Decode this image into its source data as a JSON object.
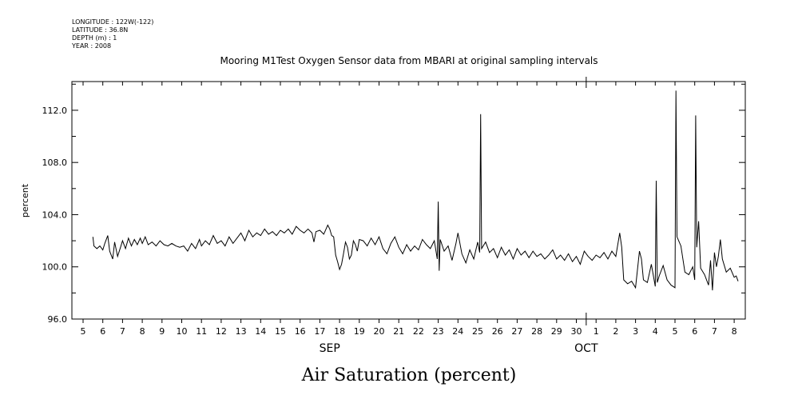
{
  "meta": {
    "longitude": "LONGITUDE : 122W(-122)",
    "latitude": "LATITUDE : 36.8N",
    "depth": "DEPTH (m) : 1",
    "year": "YEAR : 2008"
  },
  "caption": "Air Saturation (percent)",
  "chart_data": {
    "type": "line",
    "title": "Mooring M1Test Oxygen Sensor data from MBARI at original sampling intervals",
    "ylabel": "percent",
    "xlabel": "",
    "ylim": [
      96.0,
      114.2
    ],
    "yticks": [
      "96.0",
      "100.0",
      "104.0",
      "108.0",
      "112.0"
    ],
    "xlim": [
      "2008-09-04T12:00",
      "2008-10-08T12:00"
    ],
    "x_tick_labels": [
      "5",
      "6",
      "7",
      "8",
      "9",
      "10",
      "11",
      "12",
      "13",
      "14",
      "15",
      "16",
      "17",
      "18",
      "19",
      "20",
      "21",
      "22",
      "23",
      "24",
      "25",
      "26",
      "27",
      "28",
      "29",
      "30",
      "1",
      "2",
      "3",
      "4",
      "5",
      "6",
      "7",
      "8"
    ],
    "month_labels": [
      {
        "label": "SEP",
        "day": 17.5
      },
      {
        "label": "OCT",
        "day": 30.5
      }
    ],
    "grid": false,
    "series": [
      {
        "x_unit": "days since 2008-09-04T12:00 (tick N centered at day index)",
        "points": [
          [
            0.5,
            102.3
          ],
          [
            0.55,
            101.6
          ],
          [
            0.7,
            101.4
          ],
          [
            0.85,
            101.6
          ],
          [
            1.0,
            101.3
          ],
          [
            1.1,
            101.8
          ],
          [
            1.25,
            102.4
          ],
          [
            1.35,
            101.2
          ],
          [
            1.5,
            100.6
          ],
          [
            1.6,
            101.9
          ],
          [
            1.75,
            100.8
          ],
          [
            1.9,
            101.5
          ],
          [
            2.0,
            102.0
          ],
          [
            2.15,
            101.4
          ],
          [
            2.3,
            102.2
          ],
          [
            2.45,
            101.6
          ],
          [
            2.6,
            102.1
          ],
          [
            2.75,
            101.7
          ],
          [
            2.9,
            102.2
          ],
          [
            3.0,
            101.8
          ],
          [
            3.15,
            102.3
          ],
          [
            3.3,
            101.7
          ],
          [
            3.5,
            101.9
          ],
          [
            3.7,
            101.6
          ],
          [
            3.9,
            102.0
          ],
          [
            4.1,
            101.7
          ],
          [
            4.3,
            101.6
          ],
          [
            4.5,
            101.8
          ],
          [
            4.7,
            101.6
          ],
          [
            4.9,
            101.5
          ],
          [
            5.1,
            101.6
          ],
          [
            5.3,
            101.2
          ],
          [
            5.5,
            101.8
          ],
          [
            5.7,
            101.4
          ],
          [
            5.9,
            102.1
          ],
          [
            6.0,
            101.6
          ],
          [
            6.2,
            102.0
          ],
          [
            6.4,
            101.7
          ],
          [
            6.6,
            102.4
          ],
          [
            6.8,
            101.8
          ],
          [
            7.0,
            102.0
          ],
          [
            7.2,
            101.6
          ],
          [
            7.4,
            102.3
          ],
          [
            7.6,
            101.8
          ],
          [
            7.8,
            102.2
          ],
          [
            8.0,
            102.6
          ],
          [
            8.2,
            102.0
          ],
          [
            8.4,
            102.8
          ],
          [
            8.6,
            102.3
          ],
          [
            8.8,
            102.6
          ],
          [
            9.0,
            102.4
          ],
          [
            9.2,
            102.9
          ],
          [
            9.4,
            102.5
          ],
          [
            9.6,
            102.7
          ],
          [
            9.8,
            102.4
          ],
          [
            10.0,
            102.8
          ],
          [
            10.2,
            102.6
          ],
          [
            10.4,
            102.9
          ],
          [
            10.6,
            102.5
          ],
          [
            10.8,
            103.1
          ],
          [
            11.0,
            102.8
          ],
          [
            11.2,
            102.6
          ],
          [
            11.4,
            102.9
          ],
          [
            11.6,
            102.6
          ],
          [
            11.7,
            101.9
          ],
          [
            11.8,
            102.7
          ],
          [
            12.0,
            102.8
          ],
          [
            12.2,
            102.5
          ],
          [
            12.4,
            103.2
          ],
          [
            12.5,
            102.9
          ],
          [
            12.6,
            102.4
          ],
          [
            12.7,
            102.3
          ],
          [
            12.8,
            100.9
          ],
          [
            12.9,
            100.4
          ],
          [
            13.0,
            99.8
          ],
          [
            13.1,
            100.2
          ],
          [
            13.2,
            101.0
          ],
          [
            13.3,
            101.9
          ],
          [
            13.4,
            101.5
          ],
          [
            13.5,
            100.6
          ],
          [
            13.6,
            100.9
          ],
          [
            13.7,
            102.0
          ],
          [
            13.8,
            101.7
          ],
          [
            13.9,
            101.2
          ],
          [
            14.0,
            102.1
          ],
          [
            14.2,
            102.0
          ],
          [
            14.4,
            101.6
          ],
          [
            14.6,
            102.2
          ],
          [
            14.8,
            101.7
          ],
          [
            15.0,
            102.3
          ],
          [
            15.2,
            101.4
          ],
          [
            15.4,
            101.0
          ],
          [
            15.6,
            101.8
          ],
          [
            15.8,
            102.3
          ],
          [
            16.0,
            101.5
          ],
          [
            16.2,
            101.0
          ],
          [
            16.4,
            101.7
          ],
          [
            16.6,
            101.2
          ],
          [
            16.8,
            101.6
          ],
          [
            17.0,
            101.3
          ],
          [
            17.2,
            102.1
          ],
          [
            17.4,
            101.7
          ],
          [
            17.6,
            101.4
          ],
          [
            17.8,
            102.0
          ],
          [
            17.95,
            100.6
          ],
          [
            18.0,
            105.0
          ],
          [
            18.05,
            99.7
          ],
          [
            18.1,
            102.1
          ],
          [
            18.3,
            101.2
          ],
          [
            18.5,
            101.6
          ],
          [
            18.7,
            100.5
          ],
          [
            18.9,
            101.8
          ],
          [
            19.0,
            102.6
          ],
          [
            19.2,
            101.0
          ],
          [
            19.4,
            100.3
          ],
          [
            19.6,
            101.3
          ],
          [
            19.8,
            100.6
          ],
          [
            20.0,
            101.9
          ],
          [
            20.1,
            101.1
          ],
          [
            20.15,
            111.7
          ],
          [
            20.2,
            101.4
          ],
          [
            20.4,
            101.9
          ],
          [
            20.6,
            101.1
          ],
          [
            20.8,
            101.4
          ],
          [
            21.0,
            100.7
          ],
          [
            21.2,
            101.5
          ],
          [
            21.4,
            100.9
          ],
          [
            21.6,
            101.3
          ],
          [
            21.8,
            100.6
          ],
          [
            22.0,
            101.4
          ],
          [
            22.2,
            100.9
          ],
          [
            22.4,
            101.2
          ],
          [
            22.6,
            100.7
          ],
          [
            22.8,
            101.2
          ],
          [
            23.0,
            100.8
          ],
          [
            23.2,
            101.0
          ],
          [
            23.4,
            100.6
          ],
          [
            23.6,
            100.9
          ],
          [
            23.8,
            101.3
          ],
          [
            24.0,
            100.6
          ],
          [
            24.2,
            100.9
          ],
          [
            24.4,
            100.5
          ],
          [
            24.6,
            101.0
          ],
          [
            24.8,
            100.4
          ],
          [
            25.0,
            100.8
          ],
          [
            25.2,
            100.2
          ],
          [
            25.4,
            101.2
          ],
          [
            25.6,
            100.8
          ],
          [
            25.8,
            100.5
          ],
          [
            26.0,
            100.9
          ],
          [
            26.2,
            100.7
          ],
          [
            26.4,
            101.1
          ],
          [
            26.6,
            100.6
          ],
          [
            26.8,
            101.2
          ],
          [
            27.0,
            100.8
          ],
          [
            27.2,
            102.6
          ],
          [
            27.3,
            101.5
          ],
          [
            27.4,
            99.0
          ],
          [
            27.6,
            98.7
          ],
          [
            27.8,
            98.9
          ],
          [
            28.0,
            98.4
          ],
          [
            28.2,
            101.2
          ],
          [
            28.3,
            100.6
          ],
          [
            28.4,
            99.0
          ],
          [
            28.6,
            98.8
          ],
          [
            28.8,
            100.2
          ],
          [
            29.0,
            98.5
          ],
          [
            29.05,
            106.6
          ],
          [
            29.1,
            98.8
          ],
          [
            29.2,
            99.3
          ],
          [
            29.4,
            100.1
          ],
          [
            29.6,
            99.0
          ],
          [
            29.8,
            98.6
          ],
          [
            30.0,
            98.4
          ],
          [
            30.05,
            113.5
          ],
          [
            30.1,
            102.3
          ],
          [
            30.3,
            101.6
          ],
          [
            30.5,
            99.6
          ],
          [
            30.7,
            99.4
          ],
          [
            30.9,
            100.0
          ],
          [
            31.0,
            99.0
          ],
          [
            31.05,
            111.6
          ],
          [
            31.1,
            101.5
          ],
          [
            31.2,
            103.5
          ],
          [
            31.3,
            99.9
          ],
          [
            31.5,
            99.4
          ],
          [
            31.7,
            98.6
          ],
          [
            31.8,
            100.5
          ],
          [
            31.9,
            98.2
          ],
          [
            32.0,
            101.1
          ],
          [
            32.1,
            100.0
          ],
          [
            32.2,
            100.8
          ],
          [
            32.3,
            102.1
          ],
          [
            32.4,
            100.6
          ],
          [
            32.6,
            99.6
          ],
          [
            32.8,
            99.9
          ],
          [
            33.0,
            99.2
          ],
          [
            33.1,
            99.3
          ],
          [
            33.2,
            98.9
          ]
        ]
      }
    ]
  }
}
